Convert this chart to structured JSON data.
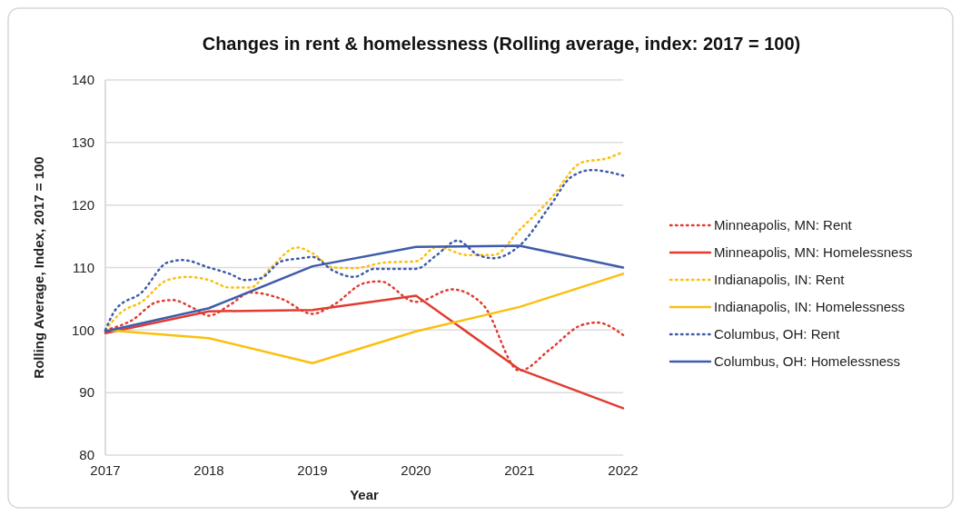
{
  "chart_data": {
    "type": "line",
    "title": "Changes in rent & homelessness (Rolling average, index: 2017 = 100)",
    "xlabel": "Year",
    "ylabel": "Rolling Average, Index, 2017 = 100",
    "xlim": [
      2017,
      2022
    ],
    "xticks": [
      2017,
      2018,
      2019,
      2020,
      2021,
      2022
    ],
    "ylim": [
      80,
      140
    ],
    "yticks": [
      80,
      90,
      100,
      110,
      120,
      130,
      140
    ],
    "grid": "y",
    "legend": "right",
    "marker": "none",
    "series": [
      {
        "name": "Minneapolis, MN: Rent",
        "color": "#e03c31",
        "line_style": "dotted",
        "x": [
          2017,
          2017.25,
          2017.5,
          2017.65,
          2017.85,
          2018,
          2018.2,
          2018.4,
          2018.7,
          2019,
          2019.2,
          2019.5,
          2019.65,
          2020,
          2020.35,
          2020.65,
          2021,
          2021.3,
          2021.6,
          2021.75,
          2022
        ],
        "values": [
          100,
          101.5,
          104.5,
          104.8,
          103.5,
          102.3,
          104,
          106,
          105,
          102.6,
          104,
          107.5,
          107.8,
          104.5,
          106.5,
          104,
          93.5,
          97,
          100.8,
          101.2,
          99.2
        ]
      },
      {
        "name": "Minneapolis, MN: Homelessness",
        "color": "#e03c31",
        "line_style": "solid",
        "x": [
          2017,
          2018,
          2019,
          2020,
          2021,
          2022
        ],
        "values": [
          99.5,
          103,
          103.2,
          105.5,
          93.7,
          87.5
        ]
      },
      {
        "name": "Indianapolis, IN: Rent",
        "color": "#fbbf0e",
        "line_style": "dotted",
        "x": [
          2017,
          2017.15,
          2017.35,
          2017.6,
          2017.8,
          2018,
          2018.2,
          2018.4,
          2018.6,
          2018.85,
          2019,
          2019.2,
          2019.4,
          2019.7,
          2020,
          2020.2,
          2020.5,
          2020.75,
          2021,
          2021.3,
          2021.6,
          2021.85,
          2022
        ],
        "values": [
          100,
          102.8,
          104.5,
          108,
          108.5,
          108,
          106.8,
          106.8,
          110,
          113.2,
          112.3,
          110,
          109.9,
          110.8,
          111,
          113.3,
          112,
          112,
          116,
          121,
          126.8,
          127.5,
          128.5
        ]
      },
      {
        "name": "Indianapolis, IN: Homelessness",
        "color": "#fbbf0e",
        "line_style": "solid",
        "x": [
          2017,
          2018,
          2019,
          2020,
          2021,
          2022
        ],
        "values": [
          100,
          98.7,
          94.7,
          99.8,
          103.7,
          109
        ]
      },
      {
        "name": "Columbus, OH: Rent",
        "color": "#3f5ba9",
        "line_style": "dotted",
        "x": [
          2017,
          2017.1,
          2017.35,
          2017.6,
          2017.75,
          2018,
          2018.2,
          2018.35,
          2018.5,
          2018.7,
          2018.9,
          2019,
          2019.2,
          2019.4,
          2019.6,
          2020,
          2020.2,
          2020.4,
          2020.6,
          2020.75,
          2021,
          2021.3,
          2021.5,
          2021.7,
          2021.85,
          2022
        ],
        "values": [
          100,
          103.3,
          106,
          110.8,
          111.2,
          110,
          109,
          108,
          108.3,
          111,
          111.5,
          111.7,
          109.5,
          108.5,
          109.8,
          109.8,
          112,
          114.3,
          112,
          111.5,
          113.5,
          120,
          124.5,
          125.6,
          125.3,
          124.7
        ]
      },
      {
        "name": "Columbus, OH: Homelessness",
        "color": "#3f5ba9",
        "line_style": "solid",
        "x": [
          2017,
          2018,
          2019,
          2020,
          2021,
          2022
        ],
        "values": [
          99.8,
          103.5,
          110.2,
          113.3,
          113.5,
          110
        ]
      }
    ]
  }
}
